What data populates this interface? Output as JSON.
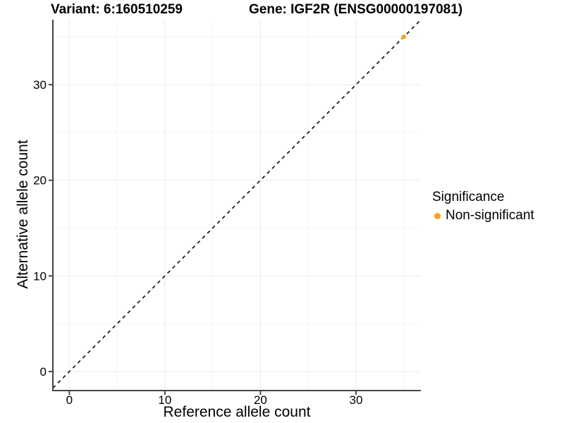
{
  "title": {
    "variant": "Variant: 6:160510259",
    "gene": "Gene: IGF2R (ENSG00000197081)"
  },
  "chart_data": {
    "type": "scatter",
    "title_left": "Variant: 6:160510259",
    "title_right": "Gene: IGF2R (ENSG00000197081)",
    "xlabel": "Reference allele count",
    "ylabel": "Alternative allele count",
    "xlim": [
      -1.72,
      36.79
    ],
    "ylim": [
      -1.99,
      36.79
    ],
    "x_ticks": [
      0,
      10,
      20,
      30
    ],
    "y_ticks": [
      0,
      10,
      20,
      30
    ],
    "x_minor_ticks": [
      5,
      15,
      25,
      35
    ],
    "y_minor_ticks": [
      5,
      15,
      25,
      35
    ],
    "grid": true,
    "points": [
      {
        "x": 35,
        "y": 35,
        "series": "Non-significant"
      }
    ],
    "reference_line": {
      "type": "abline",
      "slope": 1,
      "intercept": 0,
      "style": "dashed"
    },
    "legend": {
      "position": "right",
      "title": "Significance",
      "entries": [
        {
          "label": "Non-significant",
          "color": "#FAA21B"
        }
      ]
    },
    "colors": {
      "point": "#FAA21B",
      "axis": "#464646",
      "grid_major": "#EBEBEB",
      "grid_minor": "#F5F5F5",
      "reference_line": "#141414",
      "text": "#000000"
    }
  }
}
